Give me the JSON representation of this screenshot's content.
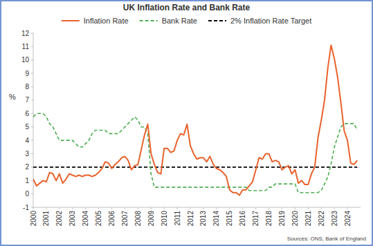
{
  "chart_data": {
    "type": "line",
    "title": "UK Inflation Rate and Bank Rate",
    "y_label": "%",
    "source": "Sources: ONS, Bank of England",
    "legend": "top",
    "grid": false,
    "x": [
      2000,
      2000.25,
      2000.5,
      2000.75,
      2001,
      2001.25,
      2001.5,
      2001.75,
      2002,
      2002.25,
      2002.5,
      2002.75,
      2003,
      2003.25,
      2003.5,
      2003.75,
      2004,
      2004.25,
      2004.5,
      2004.75,
      2005,
      2005.25,
      2005.5,
      2005.75,
      2006,
      2006.25,
      2006.5,
      2006.75,
      2007,
      2007.25,
      2007.5,
      2007.75,
      2008,
      2008.25,
      2008.5,
      2008.75,
      2009,
      2009.25,
      2009.5,
      2009.75,
      2010,
      2010.25,
      2010.5,
      2010.75,
      2011,
      2011.25,
      2011.5,
      2011.75,
      2012,
      2012.25,
      2012.5,
      2012.75,
      2013,
      2013.25,
      2013.5,
      2013.75,
      2014,
      2014.25,
      2014.5,
      2014.75,
      2015,
      2015.25,
      2015.5,
      2015.75,
      2016,
      2016.25,
      2016.5,
      2016.75,
      2017,
      2017.25,
      2017.5,
      2017.75,
      2018,
      2018.25,
      2018.5,
      2018.75,
      2019,
      2019.25,
      2019.5,
      2019.75,
      2020,
      2020.25,
      2020.5,
      2020.75,
      2021,
      2021.25,
      2021.5,
      2021.75,
      2022,
      2022.25,
      2022.5,
      2022.75,
      2023,
      2023.25,
      2023.5,
      2023.75,
      2024,
      2024.25,
      2024.5,
      2024.75
    ],
    "xlim": [
      2000,
      2025
    ],
    "xticks": [
      2000,
      2001,
      2002,
      2003,
      2004,
      2005,
      2006,
      2007,
      2008,
      2009,
      2010,
      2011,
      2012,
      2013,
      2014,
      2015,
      2016,
      2017,
      2018,
      2019,
      2020,
      2021,
      2022,
      2023,
      2024
    ],
    "ylim": [
      -1,
      12
    ],
    "yticks": [
      -1,
      0,
      1,
      2,
      3,
      4,
      5,
      6,
      7,
      8,
      9,
      10,
      11,
      12
    ],
    "series": [
      {
        "name": "Inflation Rate",
        "color": "#e8622c",
        "line_style": "solid",
        "values": [
          1.1,
          0.6,
          0.8,
          1.0,
          0.9,
          1.6,
          1.5,
          1.0,
          1.5,
          0.8,
          1.1,
          1.5,
          1.4,
          1.3,
          1.4,
          1.3,
          1.4,
          1.4,
          1.3,
          1.4,
          1.6,
          1.9,
          2.4,
          2.3,
          1.9,
          2.2,
          2.4,
          2.7,
          2.8,
          2.5,
          1.8,
          2.1,
          2.2,
          3.3,
          4.4,
          5.2,
          3.0,
          2.2,
          1.6,
          1.5,
          3.4,
          3.4,
          3.1,
          3.2,
          4.0,
          4.5,
          4.4,
          5.2,
          3.6,
          3.0,
          2.6,
          2.7,
          2.7,
          2.4,
          2.8,
          2.2,
          1.9,
          1.8,
          1.6,
          1.3,
          0.3,
          0.1,
          0.1,
          -0.1,
          0.3,
          0.3,
          0.6,
          0.9,
          1.8,
          2.7,
          2.6,
          3.0,
          3.0,
          2.4,
          2.5,
          2.4,
          1.8,
          2.0,
          2.1,
          1.5,
          1.8,
          0.8,
          1.0,
          0.7,
          0.7,
          1.5,
          2.0,
          4.2,
          5.5,
          7.0,
          9.4,
          11.1,
          10.1,
          8.7,
          6.8,
          4.7,
          4.0,
          2.3,
          2.2,
          2.5
        ]
      },
      {
        "name": "Bank Rate",
        "color": "#4caf50",
        "line_style": "dashed",
        "values": [
          5.75,
          6.0,
          6.0,
          6.0,
          5.75,
          5.25,
          5.0,
          4.5,
          4.0,
          4.0,
          4.0,
          4.0,
          4.0,
          3.75,
          3.5,
          3.5,
          3.75,
          4.0,
          4.5,
          4.75,
          4.75,
          4.75,
          4.75,
          4.5,
          4.5,
          4.5,
          4.5,
          4.75,
          5.0,
          5.25,
          5.5,
          5.75,
          5.5,
          5.0,
          5.0,
          4.5,
          1.5,
          0.5,
          0.5,
          0.5,
          0.5,
          0.5,
          0.5,
          0.5,
          0.5,
          0.5,
          0.5,
          0.5,
          0.5,
          0.5,
          0.5,
          0.5,
          0.5,
          0.5,
          0.5,
          0.5,
          0.5,
          0.5,
          0.5,
          0.5,
          0.5,
          0.5,
          0.5,
          0.5,
          0.5,
          0.5,
          0.25,
          0.25,
          0.25,
          0.25,
          0.25,
          0.25,
          0.5,
          0.5,
          0.75,
          0.75,
          0.75,
          0.75,
          0.75,
          0.75,
          0.75,
          0.1,
          0.1,
          0.1,
          0.1,
          0.1,
          0.1,
          0.1,
          0.25,
          0.75,
          1.25,
          2.25,
          3.5,
          4.25,
          5.0,
          5.25,
          5.25,
          5.25,
          5.25,
          4.75
        ]
      },
      {
        "name": "2% Inflation Rate Target",
        "color": "#000000",
        "line_style": "dashed",
        "values": [
          2,
          2,
          2,
          2,
          2,
          2,
          2,
          2,
          2,
          2,
          2,
          2,
          2,
          2,
          2,
          2,
          2,
          2,
          2,
          2,
          2,
          2,
          2,
          2,
          2,
          2,
          2,
          2,
          2,
          2,
          2,
          2,
          2,
          2,
          2,
          2,
          2,
          2,
          2,
          2,
          2,
          2,
          2,
          2,
          2,
          2,
          2,
          2,
          2,
          2,
          2,
          2,
          2,
          2,
          2,
          2,
          2,
          2,
          2,
          2,
          2,
          2,
          2,
          2,
          2,
          2,
          2,
          2,
          2,
          2,
          2,
          2,
          2,
          2,
          2,
          2,
          2,
          2,
          2,
          2,
          2,
          2,
          2,
          2,
          2,
          2,
          2,
          2,
          2,
          2,
          2,
          2,
          2,
          2,
          2,
          2,
          2,
          2,
          2,
          2
        ]
      }
    ]
  }
}
